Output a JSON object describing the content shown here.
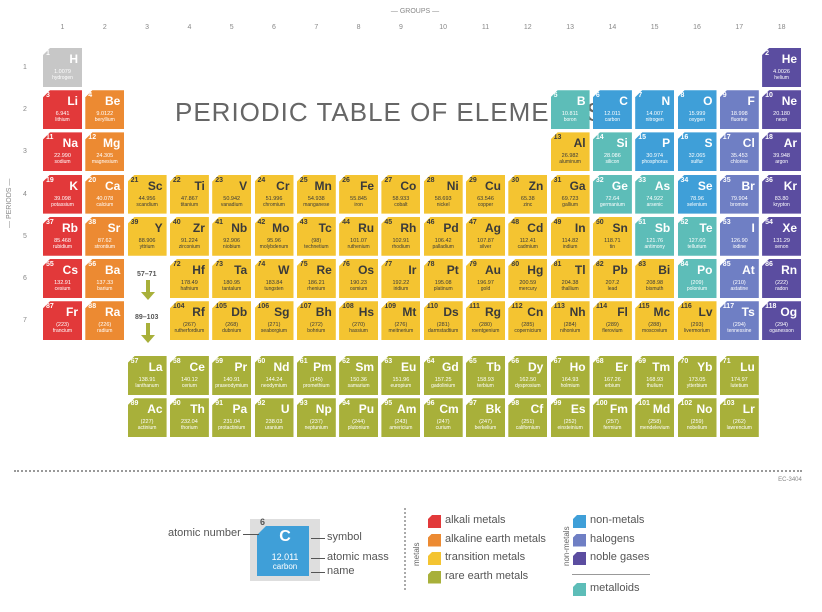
{
  "header": {
    "groups_label": "— GROUPS —",
    "periods_label": "— PERIODS —"
  },
  "title": "PERIODIC TABLE OF ELEMENTS",
  "colors": {
    "alkali": "#e2393a",
    "alkaline": "#ec8a32",
    "transition": "#f4c431",
    "rare": "#a8b03a",
    "nonmetal": "#3f9fd8",
    "halogen": "#6f7fc4",
    "noble": "#5b4da0",
    "metalloid": "#5dbdb8",
    "hydrogen": "#c7c7c7"
  },
  "groups": [
    "1",
    "2",
    "3",
    "4",
    "5",
    "6",
    "7",
    "8",
    "9",
    "10",
    "11",
    "12",
    "13",
    "14",
    "15",
    "16",
    "17",
    "18"
  ],
  "periods": [
    "1",
    "2",
    "3",
    "4",
    "5",
    "6",
    "7"
  ],
  "arrows": {
    "lanthanide_range": "57–71",
    "actinide_range": "89–103"
  },
  "code": "EC-3404",
  "elements": [
    {
      "n": "1",
      "s": "H",
      "m": "1.0079",
      "nm": "hydrogen",
      "t": "hydrogen"
    },
    {
      "n": "2",
      "s": "He",
      "m": "4.0026",
      "nm": "helium",
      "t": "noble"
    },
    {
      "n": "3",
      "s": "Li",
      "m": "6.941",
      "nm": "lithium",
      "t": "alkali"
    },
    {
      "n": "4",
      "s": "Be",
      "m": "9.0122",
      "nm": "beryllium",
      "t": "alkaline"
    },
    {
      "n": "5",
      "s": "B",
      "m": "10.811",
      "nm": "boron",
      "t": "metalloid"
    },
    {
      "n": "6",
      "s": "C",
      "m": "12.011",
      "nm": "carbon",
      "t": "nonmetal"
    },
    {
      "n": "7",
      "s": "N",
      "m": "14.007",
      "nm": "nitrogen",
      "t": "nonmetal"
    },
    {
      "n": "8",
      "s": "O",
      "m": "15.999",
      "nm": "oxygen",
      "t": "nonmetal"
    },
    {
      "n": "9",
      "s": "F",
      "m": "18.998",
      "nm": "fluorine",
      "t": "halogen"
    },
    {
      "n": "10",
      "s": "Ne",
      "m": "20.180",
      "nm": "neon",
      "t": "noble"
    },
    {
      "n": "11",
      "s": "Na",
      "m": "22.990",
      "nm": "sodium",
      "t": "alkali"
    },
    {
      "n": "12",
      "s": "Mg",
      "m": "24.305",
      "nm": "magnesium",
      "t": "alkaline"
    },
    {
      "n": "13",
      "s": "Al",
      "m": "26.982",
      "nm": "aluminum",
      "t": "transition"
    },
    {
      "n": "14",
      "s": "Si",
      "m": "28.086",
      "nm": "silicon",
      "t": "metalloid"
    },
    {
      "n": "15",
      "s": "P",
      "m": "30.974",
      "nm": "phosphorus",
      "t": "nonmetal"
    },
    {
      "n": "16",
      "s": "S",
      "m": "32.065",
      "nm": "sulfur",
      "t": "nonmetal"
    },
    {
      "n": "17",
      "s": "Cl",
      "m": "35.453",
      "nm": "chlorine",
      "t": "halogen"
    },
    {
      "n": "18",
      "s": "Ar",
      "m": "39.948",
      "nm": "argon",
      "t": "noble"
    },
    {
      "n": "19",
      "s": "K",
      "m": "39.098",
      "nm": "potassium",
      "t": "alkali"
    },
    {
      "n": "20",
      "s": "Ca",
      "m": "40.078",
      "nm": "calcium",
      "t": "alkaline"
    },
    {
      "n": "21",
      "s": "Sc",
      "m": "44.956",
      "nm": "scandium",
      "t": "transition"
    },
    {
      "n": "22",
      "s": "Ti",
      "m": "47.867",
      "nm": "titanium",
      "t": "transition"
    },
    {
      "n": "23",
      "s": "V",
      "m": "50.942",
      "nm": "vanadium",
      "t": "transition"
    },
    {
      "n": "24",
      "s": "Cr",
      "m": "51.996",
      "nm": "chromium",
      "t": "transition"
    },
    {
      "n": "25",
      "s": "Mn",
      "m": "54.938",
      "nm": "manganese",
      "t": "transition"
    },
    {
      "n": "26",
      "s": "Fe",
      "m": "55.845",
      "nm": "iron",
      "t": "transition"
    },
    {
      "n": "27",
      "s": "Co",
      "m": "58.933",
      "nm": "cobalt",
      "t": "transition"
    },
    {
      "n": "28",
      "s": "Ni",
      "m": "58.693",
      "nm": "nickel",
      "t": "transition"
    },
    {
      "n": "29",
      "s": "Cu",
      "m": "63.546",
      "nm": "copper",
      "t": "transition"
    },
    {
      "n": "30",
      "s": "Zn",
      "m": "65.38",
      "nm": "zinc",
      "t": "transition"
    },
    {
      "n": "31",
      "s": "Ga",
      "m": "69.723",
      "nm": "gallium",
      "t": "transition"
    },
    {
      "n": "32",
      "s": "Ge",
      "m": "72.64",
      "nm": "germanium",
      "t": "metalloid"
    },
    {
      "n": "33",
      "s": "As",
      "m": "74.922",
      "nm": "arsenic",
      "t": "metalloid"
    },
    {
      "n": "34",
      "s": "Se",
      "m": "78.96",
      "nm": "selenium",
      "t": "nonmetal"
    },
    {
      "n": "35",
      "s": "Br",
      "m": "79.904",
      "nm": "bromine",
      "t": "halogen"
    },
    {
      "n": "36",
      "s": "Kr",
      "m": "83.80",
      "nm": "krypton",
      "t": "noble"
    },
    {
      "n": "37",
      "s": "Rb",
      "m": "85.468",
      "nm": "rubidium",
      "t": "alkali"
    },
    {
      "n": "38",
      "s": "Sr",
      "m": "87.62",
      "nm": "strontium",
      "t": "alkaline"
    },
    {
      "n": "39",
      "s": "Y",
      "m": "88.906",
      "nm": "yttrium",
      "t": "transition"
    },
    {
      "n": "40",
      "s": "Zr",
      "m": "91.224",
      "nm": "zirconium",
      "t": "transition"
    },
    {
      "n": "41",
      "s": "Nb",
      "m": "92.906",
      "nm": "niobium",
      "t": "transition"
    },
    {
      "n": "42",
      "s": "Mo",
      "m": "95.96",
      "nm": "molybdenum",
      "t": "transition"
    },
    {
      "n": "43",
      "s": "Tc",
      "m": "(98)",
      "nm": "technetium",
      "t": "transition"
    },
    {
      "n": "44",
      "s": "Ru",
      "m": "101.07",
      "nm": "ruthenium",
      "t": "transition"
    },
    {
      "n": "45",
      "s": "Rh",
      "m": "102.91",
      "nm": "rhodium",
      "t": "transition"
    },
    {
      "n": "46",
      "s": "Pd",
      "m": "106.42",
      "nm": "palladium",
      "t": "transition"
    },
    {
      "n": "47",
      "s": "Ag",
      "m": "107.87",
      "nm": "silver",
      "t": "transition"
    },
    {
      "n": "48",
      "s": "Cd",
      "m": "112.41",
      "nm": "cadmium",
      "t": "transition"
    },
    {
      "n": "49",
      "s": "In",
      "m": "114.82",
      "nm": "indium",
      "t": "transition"
    },
    {
      "n": "50",
      "s": "Sn",
      "m": "118.71",
      "nm": "tin",
      "t": "transition"
    },
    {
      "n": "51",
      "s": "Sb",
      "m": "121.76",
      "nm": "antimony",
      "t": "metalloid"
    },
    {
      "n": "52",
      "s": "Te",
      "m": "127.60",
      "nm": "tellurium",
      "t": "metalloid"
    },
    {
      "n": "53",
      "s": "I",
      "m": "126.90",
      "nm": "iodine",
      "t": "halogen"
    },
    {
      "n": "54",
      "s": "Xe",
      "m": "131.29",
      "nm": "xenon",
      "t": "noble"
    },
    {
      "n": "55",
      "s": "Cs",
      "m": "132.91",
      "nm": "cesium",
      "t": "alkali"
    },
    {
      "n": "56",
      "s": "Ba",
      "m": "137.33",
      "nm": "barium",
      "t": "alkaline"
    },
    {
      "n": "72",
      "s": "Hf",
      "m": "178.49",
      "nm": "hafnium",
      "t": "transition"
    },
    {
      "n": "73",
      "s": "Ta",
      "m": "180.95",
      "nm": "tantalum",
      "t": "transition"
    },
    {
      "n": "74",
      "s": "W",
      "m": "183.84",
      "nm": "tungsten",
      "t": "transition"
    },
    {
      "n": "75",
      "s": "Re",
      "m": "186.21",
      "nm": "rhenium",
      "t": "transition"
    },
    {
      "n": "76",
      "s": "Os",
      "m": "190.23",
      "nm": "osmium",
      "t": "transition"
    },
    {
      "n": "77",
      "s": "Ir",
      "m": "192.22",
      "nm": "iridium",
      "t": "transition"
    },
    {
      "n": "78",
      "s": "Pt",
      "m": "195.08",
      "nm": "platinum",
      "t": "transition"
    },
    {
      "n": "79",
      "s": "Au",
      "m": "196.97",
      "nm": "gold",
      "t": "transition"
    },
    {
      "n": "80",
      "s": "Hg",
      "m": "200.59",
      "nm": "mercury",
      "t": "transition"
    },
    {
      "n": "81",
      "s": "Tl",
      "m": "204.38",
      "nm": "thallium",
      "t": "transition"
    },
    {
      "n": "82",
      "s": "Pb",
      "m": "207.2",
      "nm": "lead",
      "t": "transition"
    },
    {
      "n": "83",
      "s": "Bi",
      "m": "208.98",
      "nm": "bismuth",
      "t": "transition"
    },
    {
      "n": "84",
      "s": "Po",
      "m": "(209)",
      "nm": "polonium",
      "t": "metalloid"
    },
    {
      "n": "85",
      "s": "At",
      "m": "(210)",
      "nm": "astatine",
      "t": "halogen"
    },
    {
      "n": "86",
      "s": "Rn",
      "m": "(222)",
      "nm": "radon",
      "t": "noble"
    },
    {
      "n": "87",
      "s": "Fr",
      "m": "(223)",
      "nm": "francium",
      "t": "alkali"
    },
    {
      "n": "88",
      "s": "Ra",
      "m": "(226)",
      "nm": "radium",
      "t": "alkaline"
    },
    {
      "n": "104",
      "s": "Rf",
      "m": "(267)",
      "nm": "rutherfordium",
      "t": "transition"
    },
    {
      "n": "105",
      "s": "Db",
      "m": "(268)",
      "nm": "dubnium",
      "t": "transition"
    },
    {
      "n": "106",
      "s": "Sg",
      "m": "(271)",
      "nm": "seaborgium",
      "t": "transition"
    },
    {
      "n": "107",
      "s": "Bh",
      "m": "(272)",
      "nm": "bohrium",
      "t": "transition"
    },
    {
      "n": "108",
      "s": "Hs",
      "m": "(270)",
      "nm": "hassium",
      "t": "transition"
    },
    {
      "n": "109",
      "s": "Mt",
      "m": "(276)",
      "nm": "meitnerium",
      "t": "transition"
    },
    {
      "n": "110",
      "s": "Ds",
      "m": "(281)",
      "nm": "darmstadtium",
      "t": "transition"
    },
    {
      "n": "111",
      "s": "Rg",
      "m": "(280)",
      "nm": "roentgenium",
      "t": "transition"
    },
    {
      "n": "112",
      "s": "Cn",
      "m": "(285)",
      "nm": "copernicium",
      "t": "transition"
    },
    {
      "n": "113",
      "s": "Nh",
      "m": "(284)",
      "nm": "nihonium",
      "t": "transition"
    },
    {
      "n": "114",
      "s": "Fl",
      "m": "(289)",
      "nm": "flerovium",
      "t": "transition"
    },
    {
      "n": "115",
      "s": "Mc",
      "m": "(288)",
      "nm": "moscovium",
      "t": "transition"
    },
    {
      "n": "116",
      "s": "Lv",
      "m": "(293)",
      "nm": "livermorium",
      "t": "transition"
    },
    {
      "n": "117",
      "s": "Ts",
      "m": "(294)",
      "nm": "tennessine",
      "t": "halogen"
    },
    {
      "n": "118",
      "s": "Og",
      "m": "(294)",
      "nm": "oganesson",
      "t": "noble"
    },
    {
      "n": "57",
      "s": "La",
      "m": "138.91",
      "nm": "lanthanum",
      "t": "rare"
    },
    {
      "n": "58",
      "s": "Ce",
      "m": "140.12",
      "nm": "cerium",
      "t": "rare"
    },
    {
      "n": "59",
      "s": "Pr",
      "m": "140.91",
      "nm": "praseodymium",
      "t": "rare"
    },
    {
      "n": "60",
      "s": "Nd",
      "m": "144.24",
      "nm": "neodymium",
      "t": "rare"
    },
    {
      "n": "61",
      "s": "Pm",
      "m": "(145)",
      "nm": "promethium",
      "t": "rare"
    },
    {
      "n": "62",
      "s": "Sm",
      "m": "150.36",
      "nm": "samarium",
      "t": "rare"
    },
    {
      "n": "63",
      "s": "Eu",
      "m": "151.96",
      "nm": "europium",
      "t": "rare"
    },
    {
      "n": "64",
      "s": "Gd",
      "m": "157.25",
      "nm": "gadolinium",
      "t": "rare"
    },
    {
      "n": "65",
      "s": "Tb",
      "m": "158.93",
      "nm": "terbium",
      "t": "rare"
    },
    {
      "n": "66",
      "s": "Dy",
      "m": "162.50",
      "nm": "dysprosium",
      "t": "rare"
    },
    {
      "n": "67",
      "s": "Ho",
      "m": "164.93",
      "nm": "holmium",
      "t": "rare"
    },
    {
      "n": "68",
      "s": "Er",
      "m": "167.26",
      "nm": "erbium",
      "t": "rare"
    },
    {
      "n": "69",
      "s": "Tm",
      "m": "168.93",
      "nm": "thulium",
      "t": "rare"
    },
    {
      "n": "70",
      "s": "Yb",
      "m": "173.05",
      "nm": "ytterbium",
      "t": "rare"
    },
    {
      "n": "71",
      "s": "Lu",
      "m": "174.97",
      "nm": "lutetium",
      "t": "rare"
    },
    {
      "n": "89",
      "s": "Ac",
      "m": "(227)",
      "nm": "actinium",
      "t": "rare"
    },
    {
      "n": "90",
      "s": "Th",
      "m": "232.04",
      "nm": "thorium",
      "t": "rare"
    },
    {
      "n": "91",
      "s": "Pa",
      "m": "231.04",
      "nm": "protactinium",
      "t": "rare"
    },
    {
      "n": "92",
      "s": "U",
      "m": "238.03",
      "nm": "uranium",
      "t": "rare"
    },
    {
      "n": "93",
      "s": "Np",
      "m": "(237)",
      "nm": "neptunium",
      "t": "rare"
    },
    {
      "n": "94",
      "s": "Pu",
      "m": "(244)",
      "nm": "plutonium",
      "t": "rare"
    },
    {
      "n": "95",
      "s": "Am",
      "m": "(243)",
      "nm": "americium",
      "t": "rare"
    },
    {
      "n": "96",
      "s": "Cm",
      "m": "(247)",
      "nm": "curium",
      "t": "rare"
    },
    {
      "n": "97",
      "s": "Bk",
      "m": "(247)",
      "nm": "berkelium",
      "t": "rare"
    },
    {
      "n": "98",
      "s": "Cf",
      "m": "(251)",
      "nm": "californium",
      "t": "rare"
    },
    {
      "n": "99",
      "s": "Es",
      "m": "(252)",
      "nm": "einsteinium",
      "t": "rare"
    },
    {
      "n": "100",
      "s": "Fm",
      "m": "(257)",
      "nm": "fermium",
      "t": "rare"
    },
    {
      "n": "101",
      "s": "Md",
      "m": "(258)",
      "nm": "mendelevium",
      "t": "rare"
    },
    {
      "n": "102",
      "s": "No",
      "m": "(259)",
      "nm": "nobelium",
      "t": "rare"
    },
    {
      "n": "103",
      "s": "Lr",
      "m": "(262)",
      "nm": "lawrencium",
      "t": "rare"
    }
  ],
  "key": {
    "atomic_number_label": "atomic number",
    "symbol_label": "symbol",
    "mass_label": "atomic mass",
    "name_label": "name",
    "sample_number": "6",
    "sample_symbol": "C",
    "sample_mass": "12.011",
    "sample_name": "carbon"
  },
  "legend": {
    "metals_heading": "metals",
    "nonmetals_heading": "non-metals",
    "metals": [
      "alkali metals",
      "alkaline earth metals",
      "transition metals",
      "rare earth metals"
    ],
    "nonmetals": [
      "non-metals",
      "halogens",
      "noble gases"
    ],
    "metalloids": "metalloids"
  }
}
